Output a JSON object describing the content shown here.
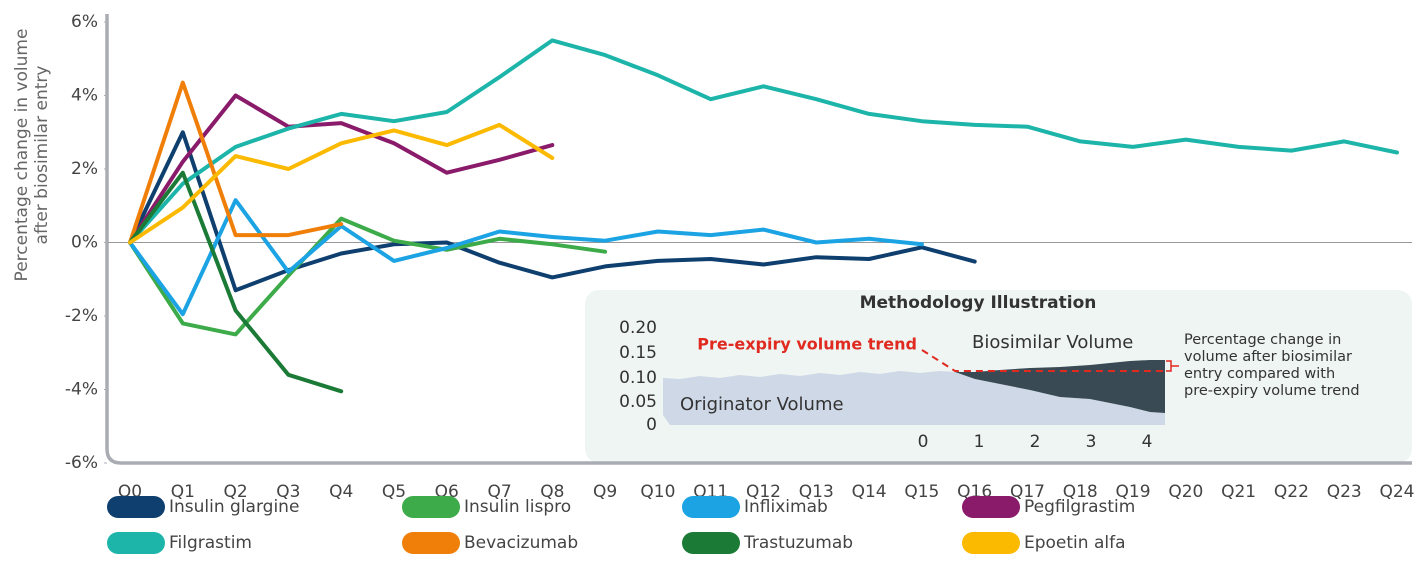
{
  "chart_data": {
    "type": "line",
    "ylabel": [
      "Percentage change  in volume",
      "after biosimilar entry"
    ],
    "categories": [
      "Q0",
      "Q1",
      "Q2",
      "Q3",
      "Q4",
      "Q5",
      "Q6",
      "Q7",
      "Q8",
      "Q9",
      "Q10",
      "Q11",
      "Q12",
      "Q13",
      "Q14",
      "Q15",
      "Q16",
      "Q17",
      "Q18",
      "Q19",
      "Q20",
      "Q21",
      "Q22",
      "Q23",
      "Q24"
    ],
    "ylim": [
      -6,
      6
    ],
    "yticks": [
      {
        "value": -6,
        "label": "-6%"
      },
      {
        "value": -4,
        "label": "-4%"
      },
      {
        "value": -2,
        "label": "-2%"
      },
      {
        "value": 0,
        "label": "0%"
      },
      {
        "value": 2,
        "label": "2%"
      },
      {
        "value": 4,
        "label": "4%"
      },
      {
        "value": 6,
        "label": "6%"
      }
    ],
    "zero_line": true,
    "series": [
      {
        "name": "Insulin glargine",
        "color": "#0e3f6e",
        "values": [
          0,
          3.0,
          -1.3,
          -0.75,
          -0.3,
          -0.05,
          0,
          -0.55,
          -0.95,
          -0.65,
          -0.5,
          -0.45,
          -0.6,
          -0.4,
          -0.45,
          -0.13,
          -0.52,
          null,
          null,
          null,
          null,
          null,
          null,
          null,
          null
        ]
      },
      {
        "name": "Insulin lispro",
        "color": "#3dab49",
        "values": [
          0,
          -2.2,
          -2.5,
          -0.9,
          0.65,
          0.05,
          -0.2,
          0.1,
          -0.05,
          -0.25,
          null,
          null,
          null,
          null,
          null,
          null,
          null,
          null,
          null,
          null,
          null,
          null,
          null,
          null,
          null
        ]
      },
      {
        "name": "Infliximab",
        "color": "#1ba3e3",
        "values": [
          0,
          -1.95,
          1.15,
          -0.8,
          0.45,
          -0.5,
          -0.15,
          0.3,
          0.15,
          0.05,
          0.3,
          0.2,
          0.35,
          0.0,
          0.1,
          -0.05,
          null,
          null,
          null,
          null,
          null,
          null,
          null,
          null,
          null
        ]
      },
      {
        "name": "Pegfilgrastim",
        "color": "#8a1a6a",
        "values": [
          0,
          2.2,
          4.0,
          3.15,
          3.25,
          2.7,
          1.9,
          2.25,
          2.65,
          null,
          null,
          null,
          null,
          null,
          null,
          null,
          null,
          null,
          null,
          null,
          null,
          null,
          null,
          null,
          null
        ]
      },
      {
        "name": "Filgrastim",
        "color": "#1db5a9",
        "values": [
          0,
          1.6,
          2.6,
          3.1,
          3.5,
          3.3,
          3.55,
          4.5,
          5.5,
          5.1,
          4.55,
          3.9,
          4.25,
          3.9,
          3.5,
          3.3,
          3.2,
          3.15,
          2.75,
          2.6,
          2.8,
          2.6,
          2.5,
          2.75,
          2.45
        ]
      },
      {
        "name": "Bevacizumab",
        "color": "#f07f0a",
        "values": [
          0,
          4.35,
          0.2,
          0.2,
          0.5,
          null,
          null,
          null,
          null,
          null,
          null,
          null,
          null,
          null,
          null,
          null,
          null,
          null,
          null,
          null,
          null,
          null,
          null,
          null,
          null
        ]
      },
      {
        "name": "Trastuzumab",
        "color": "#1a7a36",
        "values": [
          0,
          1.9,
          -1.85,
          -3.6,
          -4.05,
          null,
          null,
          null,
          null,
          null,
          null,
          null,
          null,
          null,
          null,
          null,
          null,
          null,
          null,
          null,
          null,
          null,
          null,
          null,
          null
        ]
      },
      {
        "name": "Epoetin alfa",
        "color": "#fbb900",
        "values": [
          0,
          0.95,
          2.35,
          2.0,
          2.7,
          3.05,
          2.65,
          3.2,
          2.3,
          null,
          null,
          null,
          null,
          null,
          null,
          null,
          null,
          null,
          null,
          null,
          null,
          null,
          null,
          null,
          null
        ]
      }
    ],
    "inset": {
      "title": "Methodology Illustration",
      "yticks": [
        "0.20",
        "0.15",
        "0.10",
        "0.05",
        "0"
      ],
      "xticks": [
        "0",
        "1",
        "2",
        "3",
        "4"
      ],
      "trend_label": "Pre-expiry volume trend",
      "biosimilar_label": "Biosimilar Volume",
      "originator_label": "Originator Volume",
      "note": [
        "Percentage change in",
        "volume after biosimilar",
        "entry compared with",
        "pre-expiry volume trend"
      ]
    }
  }
}
